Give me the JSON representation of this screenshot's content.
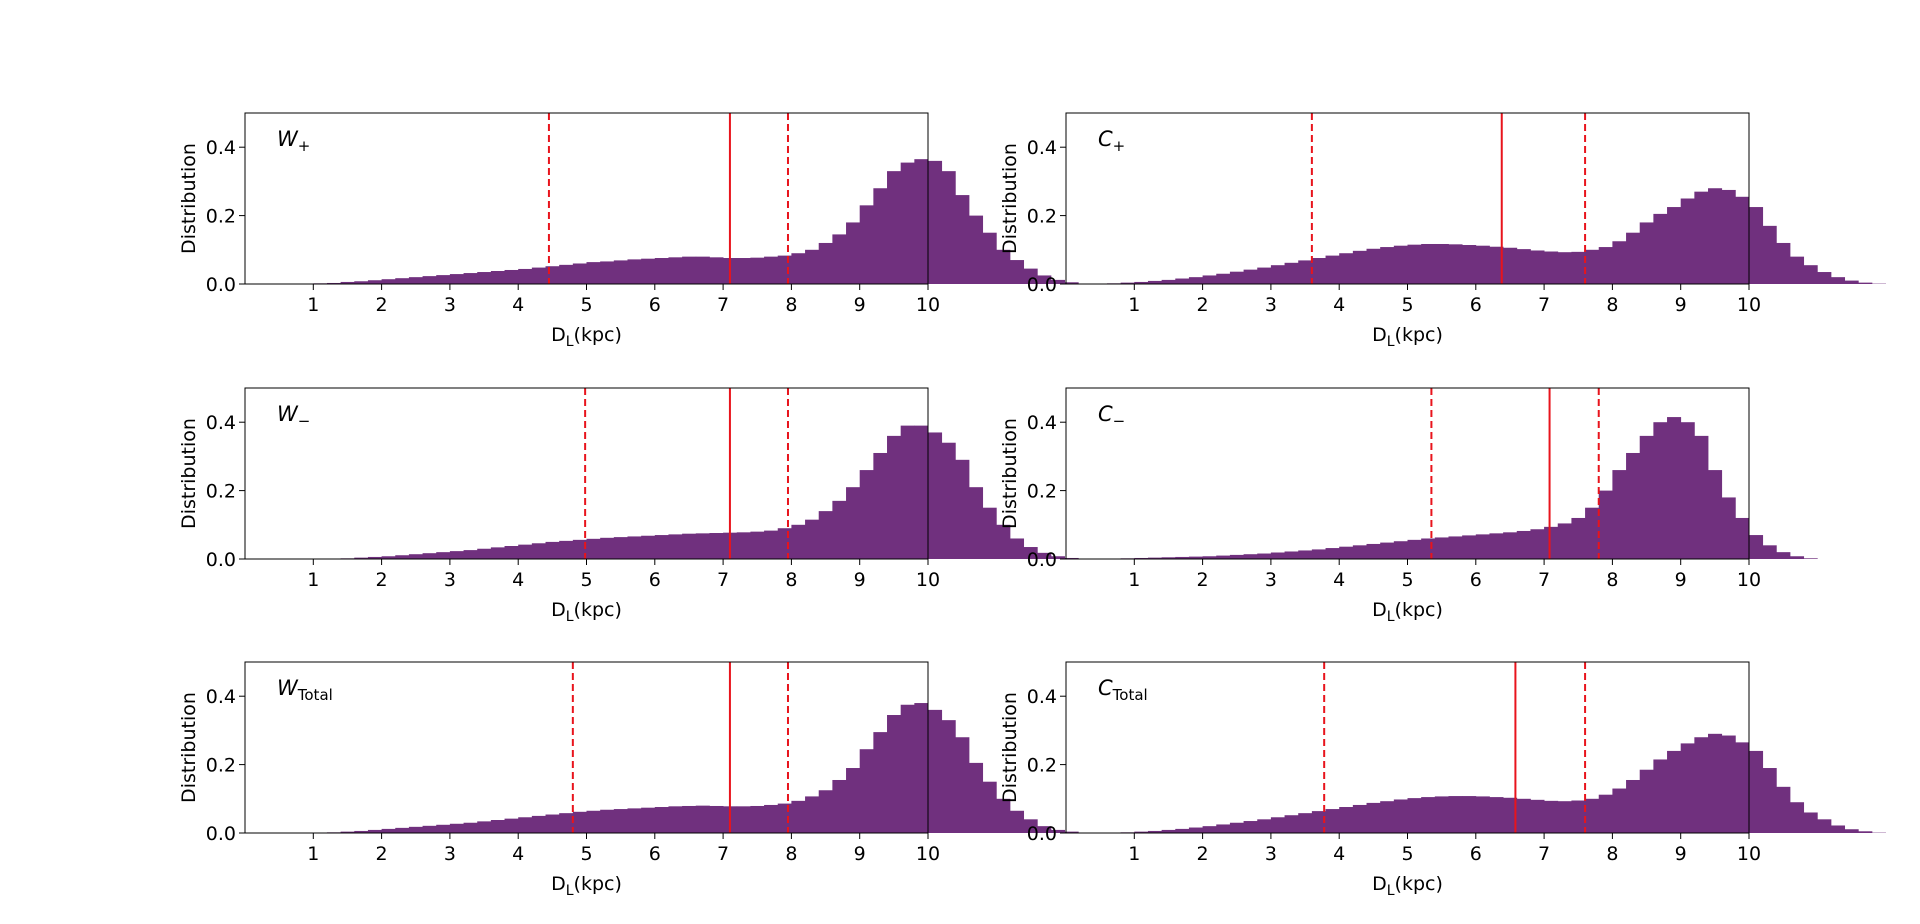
{
  "chart_data": [
    {
      "type": "bar",
      "panel": "W+",
      "label_main": "W",
      "label_sub": "+",
      "xlabel_main": "D",
      "xlabel_sub": "L",
      "xlabel_rest": "(kpc)",
      "ylabel": "Distribution",
      "xlim": [
        0,
        10
      ],
      "ylim": [
        0,
        0.5
      ],
      "xticks": [
        "1",
        "2",
        "3",
        "4",
        "5",
        "6",
        "7",
        "8",
        "9",
        "10"
      ],
      "yticks": [
        "0.0",
        "0.2",
        "0.4"
      ],
      "bin_start": 0.4,
      "bin_width": 0.2,
      "values": [
        0,
        0,
        0,
        0.002,
        0.003,
        0.006,
        0.008,
        0.011,
        0.014,
        0.017,
        0.02,
        0.023,
        0.026,
        0.029,
        0.032,
        0.035,
        0.038,
        0.041,
        0.044,
        0.048,
        0.052,
        0.056,
        0.06,
        0.064,
        0.066,
        0.069,
        0.072,
        0.074,
        0.076,
        0.078,
        0.08,
        0.08,
        0.078,
        0.076,
        0.076,
        0.077,
        0.08,
        0.083,
        0.09,
        0.1,
        0.12,
        0.145,
        0.18,
        0.23,
        0.28,
        0.33,
        0.355,
        0.365,
        0.36,
        0.33,
        0.26,
        0.2,
        0.15,
        0.1,
        0.07,
        0.045,
        0.025,
        0.012,
        0.005,
        0.001
      ],
      "median": 7.1,
      "lower": 4.45,
      "upper": 7.95
    },
    {
      "type": "bar",
      "panel": "C+",
      "label_main": "C",
      "label_sub": "+",
      "xlabel_main": "D",
      "xlabel_sub": "L",
      "xlabel_rest": "(kpc)",
      "ylabel": "Distribution",
      "xlim": [
        0,
        10
      ],
      "ylim": [
        0,
        0.5
      ],
      "xticks": [
        "1",
        "2",
        "3",
        "4",
        "5",
        "6",
        "7",
        "8",
        "9",
        "10"
      ],
      "yticks": [
        "0.0",
        "0.2",
        "0.4"
      ],
      "bin_start": 0.4,
      "bin_width": 0.2,
      "values": [
        0,
        0.002,
        0.004,
        0.006,
        0.009,
        0.012,
        0.016,
        0.02,
        0.025,
        0.03,
        0.036,
        0.042,
        0.048,
        0.055,
        0.062,
        0.069,
        0.076,
        0.083,
        0.09,
        0.097,
        0.103,
        0.108,
        0.112,
        0.115,
        0.117,
        0.117,
        0.116,
        0.114,
        0.112,
        0.109,
        0.106,
        0.102,
        0.098,
        0.095,
        0.093,
        0.094,
        0.1,
        0.108,
        0.125,
        0.15,
        0.18,
        0.205,
        0.225,
        0.25,
        0.27,
        0.28,
        0.275,
        0.255,
        0.225,
        0.17,
        0.12,
        0.08,
        0.055,
        0.035,
        0.02,
        0.01,
        0.004,
        0.001
      ],
      "median": 6.38,
      "lower": 3.6,
      "upper": 7.6
    },
    {
      "type": "bar",
      "panel": "W-",
      "label_main": "W",
      "label_sub": "−",
      "xlabel_main": "D",
      "xlabel_sub": "L",
      "xlabel_rest": "(kpc)",
      "ylabel": "Distribution",
      "xlim": [
        0,
        10
      ],
      "ylim": [
        0,
        0.5
      ],
      "xticks": [
        "1",
        "2",
        "3",
        "4",
        "5",
        "6",
        "7",
        "8",
        "9",
        "10"
      ],
      "yticks": [
        "0.0",
        "0.2",
        "0.4"
      ],
      "bin_start": 0.4,
      "bin_width": 0.2,
      "values": [
        0,
        0,
        0,
        0,
        0,
        0.002,
        0.004,
        0.006,
        0.008,
        0.011,
        0.014,
        0.017,
        0.02,
        0.023,
        0.026,
        0.03,
        0.034,
        0.038,
        0.042,
        0.046,
        0.05,
        0.053,
        0.056,
        0.059,
        0.062,
        0.064,
        0.066,
        0.068,
        0.07,
        0.072,
        0.074,
        0.075,
        0.076,
        0.077,
        0.078,
        0.08,
        0.083,
        0.09,
        0.1,
        0.115,
        0.14,
        0.17,
        0.21,
        0.26,
        0.31,
        0.36,
        0.39,
        0.39,
        0.37,
        0.34,
        0.29,
        0.21,
        0.15,
        0.1,
        0.06,
        0.035,
        0.018,
        0.008,
        0.003
      ],
      "median": 7.1,
      "lower": 4.98,
      "upper": 7.95
    },
    {
      "type": "bar",
      "panel": "C-",
      "label_main": "C",
      "label_sub": "−",
      "xlabel_main": "D",
      "xlabel_sub": "L",
      "xlabel_rest": "(kpc)",
      "ylabel": "Distribution",
      "xlim": [
        0,
        10
      ],
      "ylim": [
        0,
        0.5
      ],
      "xticks": [
        "1",
        "2",
        "3",
        "4",
        "5",
        "6",
        "7",
        "8",
        "9",
        "10"
      ],
      "yticks": [
        "0.0",
        "0.2",
        "0.4"
      ],
      "bin_start": 0.4,
      "bin_width": 0.2,
      "values": [
        0,
        0.001,
        0.002,
        0.003,
        0.004,
        0.005,
        0.006,
        0.007,
        0.008,
        0.01,
        0.012,
        0.014,
        0.016,
        0.019,
        0.022,
        0.025,
        0.028,
        0.032,
        0.036,
        0.04,
        0.044,
        0.048,
        0.052,
        0.056,
        0.06,
        0.063,
        0.066,
        0.069,
        0.072,
        0.075,
        0.078,
        0.082,
        0.087,
        0.094,
        0.104,
        0.12,
        0.15,
        0.2,
        0.26,
        0.31,
        0.36,
        0.4,
        0.415,
        0.4,
        0.36,
        0.26,
        0.18,
        0.12,
        0.07,
        0.04,
        0.02,
        0.008,
        0.002,
        0
      ],
      "median": 7.08,
      "lower": 5.35,
      "upper": 7.8
    },
    {
      "type": "bar",
      "panel": "WTotal",
      "label_main": "W",
      "label_sub": "Total",
      "xlabel_main": "D",
      "xlabel_sub": "L",
      "xlabel_rest": "(kpc)",
      "ylabel": "Distribution",
      "xlim": [
        0,
        10
      ],
      "ylim": [
        0,
        0.5
      ],
      "xticks": [
        "1",
        "2",
        "3",
        "4",
        "5",
        "6",
        "7",
        "8",
        "9",
        "10"
      ],
      "yticks": [
        "0.0",
        "0.2",
        "0.4"
      ],
      "bin_start": 0.4,
      "bin_width": 0.2,
      "values": [
        0,
        0,
        0,
        0.001,
        0.002,
        0.004,
        0.006,
        0.009,
        0.012,
        0.015,
        0.018,
        0.021,
        0.024,
        0.027,
        0.03,
        0.034,
        0.038,
        0.042,
        0.046,
        0.05,
        0.054,
        0.058,
        0.062,
        0.065,
        0.068,
        0.07,
        0.072,
        0.074,
        0.076,
        0.078,
        0.079,
        0.08,
        0.079,
        0.078,
        0.078,
        0.079,
        0.082,
        0.086,
        0.094,
        0.107,
        0.125,
        0.155,
        0.19,
        0.245,
        0.295,
        0.345,
        0.375,
        0.38,
        0.36,
        0.33,
        0.28,
        0.205,
        0.15,
        0.1,
        0.065,
        0.04,
        0.02,
        0.009,
        0.004,
        0.001
      ],
      "median": 7.1,
      "lower": 4.8,
      "upper": 7.95
    },
    {
      "type": "bar",
      "panel": "CTotal",
      "label_main": "C",
      "label_sub": "Total",
      "xlabel_main": "D",
      "xlabel_sub": "L",
      "xlabel_rest": "(kpc)",
      "ylabel": "Distribution",
      "xlim": [
        0,
        10
      ],
      "ylim": [
        0,
        0.5
      ],
      "xticks": [
        "1",
        "2",
        "3",
        "4",
        "5",
        "6",
        "7",
        "8",
        "9",
        "10"
      ],
      "yticks": [
        "0.0",
        "0.2",
        "0.4"
      ],
      "bin_start": 0.4,
      "bin_width": 0.2,
      "values": [
        0,
        0.001,
        0.002,
        0.004,
        0.006,
        0.009,
        0.012,
        0.016,
        0.02,
        0.025,
        0.03,
        0.035,
        0.04,
        0.046,
        0.052,
        0.058,
        0.064,
        0.07,
        0.076,
        0.082,
        0.088,
        0.093,
        0.098,
        0.102,
        0.105,
        0.107,
        0.108,
        0.108,
        0.107,
        0.105,
        0.103,
        0.1,
        0.097,
        0.094,
        0.093,
        0.095,
        0.1,
        0.112,
        0.13,
        0.155,
        0.185,
        0.215,
        0.24,
        0.262,
        0.28,
        0.29,
        0.285,
        0.265,
        0.24,
        0.19,
        0.135,
        0.09,
        0.06,
        0.04,
        0.022,
        0.011,
        0.005,
        0.001
      ],
      "median": 6.58,
      "lower": 3.78,
      "upper": 7.6
    }
  ],
  "colors": {
    "bar": "#70307e",
    "line": "#e8141c",
    "axis": "#000000"
  }
}
